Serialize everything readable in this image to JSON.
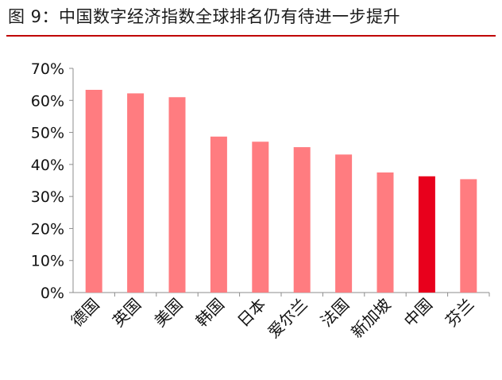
{
  "figure": {
    "title": "图 9：中国数字经济指数全球排名仍有待进一步提升",
    "rule_color": "#c00000"
  },
  "chart_data": {
    "type": "bar",
    "title": "",
    "xlabel": "",
    "ylabel": "",
    "categories": [
      "德国",
      "英国",
      "美国",
      "韩国",
      "日本",
      "爱尔兰",
      "法国",
      "新加坡",
      "中国",
      "芬兰"
    ],
    "values": [
      63.3,
      62.2,
      61.0,
      48.7,
      47.1,
      45.4,
      43.1,
      37.5,
      36.3,
      35.4
    ],
    "value_unit": "%",
    "ylim": [
      0,
      70
    ],
    "yticks": [
      0,
      10,
      20,
      30,
      40,
      50,
      60,
      70
    ],
    "ytick_labels": [
      "0%",
      "10%",
      "20%",
      "30%",
      "40%",
      "50%",
      "60%",
      "70%"
    ],
    "grid": false,
    "legend": "none",
    "bar_color": "#ff7c80",
    "highlight_category": "中国",
    "highlight_color": "#e8001c"
  }
}
